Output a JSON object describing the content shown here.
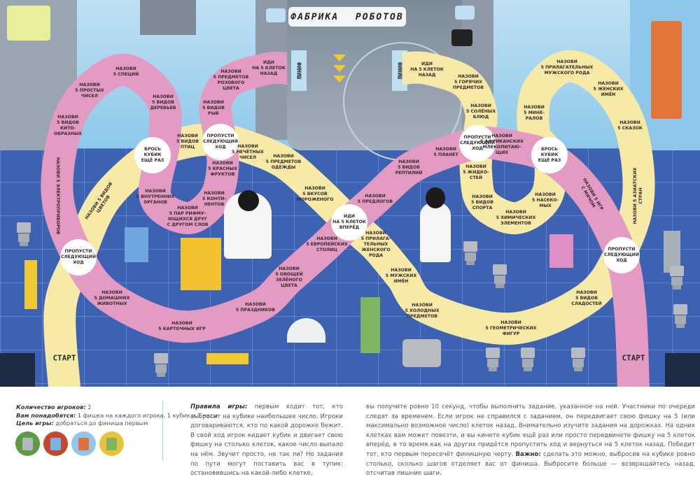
{
  "board": {
    "title": "ФАБРИКА РОБОТОВ",
    "finish_label": "ФИНИШ",
    "start_label": "СТАРТ",
    "colors": {
      "pink_track": "#e39bc3",
      "yellow_track": "#f7eaa6",
      "special_cell": "#ffffff",
      "floor": "#3e62b2",
      "sky": "#a9d6ef"
    },
    "pink_cells": [
      "НАЗОВИ\n5 ВИДОВ\nКИТО-\nОБРАЗНЫХ",
      "НАЗОВИ\n5 ПРОСТЫХ\nЧИСЕЛ",
      "НАЗОВИ\n5 СПЕЦИЙ",
      "НАЗОВИ\n5 ВИДОВ\nДЕРЕВЬЕВ",
      "НАЗОВИ\n5 ПРЕДМЕТОВ\nРОЗОВОГО\nЦВЕТА",
      "ИДИ\nНА 5 КЛЕТОК\nНАЗАД",
      "НАЗОВИ\n5 ВИДОВ\nРЫБ",
      "НАЗОВИ\n5 КРАСНЫХ\nФРУКТОВ",
      "НАЗОВИ\n5 КОНТИ-\nНЕНТОВ",
      "НАЗОВИ\n5 ПАР РИФМУ-\nЮЩИХСЯ ДРУГ\nС ДРУГОМ СЛОВ",
      "НАЗОВИ\n5 ВНУТРЕННИХ\nОРГАНОВ",
      "НАЗОВИ 5 ЭЛЕКТРОПРИБОРОВ",
      "НАЗОВИ\n5 ДОМАШНИХ\nЖИВОТНЫХ",
      "НАЗОВИ\n5 КАРТОЧНЫХ ИГР",
      "НАЗОВИ\n5 ПРАЗДНИКОВ",
      "НАЗОВИ\n5 ОВОЩЕЙ\nЗЕЛЁНОГО\nЦВЕТА",
      "НАЗОВИ\n5 ЕВРОПЕЙСКИХ\nСТОЛИЦ",
      "НАЗОВИ\n5 ПРЕДЛОГОВ",
      "НАЗОВИ\n5 ВИДОВ\nРЕПТИЛИЙ",
      "НАЗОВИ\n5 ПЛАНЕТ",
      "НАЗОВИ\n5 АФРИКАНСКИХ\nМЛЕКОПИТАЮ-\nЩИХ",
      "НАЗОВИ 5 ИГР\nС МЯЧОМ"
    ],
    "yellow_cells": [
      "ИДИ\nНА 5 КЛЕТОК\nНАЗАД",
      "НАЗОВИ\n5 ГОРЯЧИХ\nПРЕДМЕТОВ",
      "НАЗОВИ\n5 СОЛЁНЫХ\nБЛЮД",
      "НАЗОВИ\n5 ЖИДКО-\nСТЕЙ",
      "НАЗОВИ\n5 ВИДОВ\nСПОРТА",
      "НАЗОВИ\n5 ХИМИЧЕСКИХ\nЭЛЕМЕНТОВ",
      "НАЗОВИ\n5 НАСЕКО-\nМЫХ",
      "НАЗОВИ\n5 МИНЕ-\nРАЛОВ",
      "НАЗОВИ\n5 ПРИЛАГАТЕЛЬНЫХ\nМУЖСКОГО РОДА",
      "НАЗОВИ\n5 ЖЕНСКИХ\nИМЁН",
      "НАЗОВИ\n5 СКАЗОК",
      "НАЗОВИ 5 АЗИАТСКИХ\nСТРАН",
      "НАЗОВИ\n5 ВИДОВ\nСЛАДОСТЕЙ",
      "НАЗОВИ\n5 ГЕОМЕТРИЧЕСКИХ\nФИГУР",
      "НАЗОВИ\n5 ХОЛОДНЫХ\nПРЕДМЕТОВ",
      "НАЗОВИ\n5 МУЖСКИХ\nИМЁН",
      "НАЗОВИ\n5 ПРИЛАГА-\nТЕЛЬНЫХ\nЖЕНСКОГО\nРОДА",
      "НАЗОВИ\n5 ВКУСОВ\nМОРОЖЕНОГО",
      "НАЗОВИ\n5 ПРЕДМЕТОВ\nОДЕЖДЫ",
      "НАЗОВИ\n5 НЕЧЁТНЫХ\nЧИСЕЛ",
      "НАЗОВИ\n5 ВИДОВ\nПТИЦ",
      "НАЗОВИ 5 ВИДОВ\nЦВЕТОВ"
    ],
    "special_cells": [
      "ПРОПУСТИ\nСЛЕДУЮЩИЙ\nХОД",
      "БРОСЬ\nКУБИК\nЕЩЁ РАЗ",
      "ПРОПУСТИ\nСЛЕДУЮЩИЙ\nХОД",
      "ИДИ\nНА 5 КЛЕТОК\nВПЕРЁД",
      "ПРОПУСТИ\nСЛЕДУЮЩИЙ\nХОД",
      "БРОСЬ\nКУБИК\nЕЩЁ РАЗ",
      "ПРОПУСТИ\nСЛЕДУЮЩИЙ\nХОД"
    ]
  },
  "info": {
    "players_label": "Количество игроков:",
    "players_value": " 2",
    "needed_label": "Вам понадобятся:",
    "needed_value": " 1 фишка на каждого игрока, 1 кубик и 1 часы",
    "goal_label": "Цель игры:",
    "goal_value": " добраться до финиша первым",
    "token_colors": [
      "#5d9b45",
      "#c4472f",
      "#93c7ea",
      "#e9c23c"
    ],
    "rules_label": "Правила игры:",
    "rules_part1": " первым ходит тот, кто выбросит на кубике наибольшее число. Игроки договариваются, кто по какой дорожке бежит. В свой ход игрок кидает кубик и двигает свою фишку на столько клеток, какое число выпало на нём. Звучит просто, не так ли? Но задания по пути могут поставить вас в тупик: остановившись на какой-либо клетке,",
    "rules_part2": "вы получите ровно 10 секунд, чтобы выполнить задание, указанное на ней. Участники по очереди следят за временем. Если игрок не справился с заданием, он передвигает свою фишку на 5 (или максимально возможное число) клеток назад. Внимательно изучите задания на дорожках. На одних клетках вам может повезти, и вы кинете кубик ещё раз или просто передвинете фишку на 5 клеток вперёд, в то время как на других придётся пропустить ход и вернуться на 5 клеток назад. Победит тот, кто первым пересечёт финишную черту. ",
    "important_label": "Важно:",
    "rules_part3": " сделать это можно, выбросив на кубике ровно столько, сколько шагов отделяет вас от финиша. Выбросите больше — возвращайтесь назад, отсчитав лишние шаги."
  }
}
